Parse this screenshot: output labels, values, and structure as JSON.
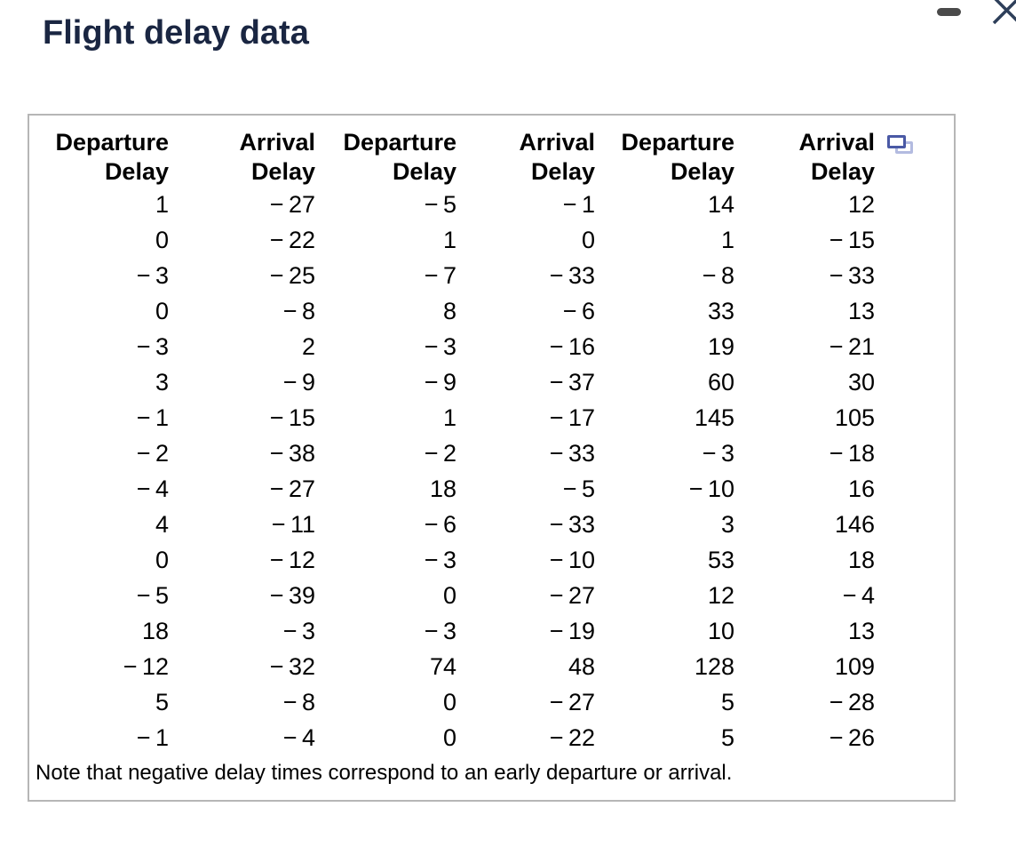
{
  "window": {
    "title": "Flight delay data",
    "controls": {
      "minimize": "minimize",
      "close": "close"
    }
  },
  "panel": {
    "table": {
      "headers": [
        {
          "line1": "Departure",
          "line2": "Delay"
        },
        {
          "line1": "Arrival",
          "line2": "Delay"
        },
        {
          "line1": "Departure",
          "line2": "Delay"
        },
        {
          "line1": "Arrival",
          "line2": "Delay"
        },
        {
          "line1": "Departure",
          "line2": "Delay"
        },
        {
          "line1": "Arrival",
          "line2": "Delay"
        }
      ],
      "rows": [
        [
          1,
          -27,
          -5,
          -1,
          14,
          12
        ],
        [
          0,
          -22,
          1,
          0,
          1,
          -15
        ],
        [
          -3,
          -25,
          -7,
          -33,
          -8,
          -33
        ],
        [
          0,
          -8,
          8,
          -6,
          33,
          13
        ],
        [
          -3,
          2,
          -3,
          -16,
          19,
          -21
        ],
        [
          3,
          -9,
          -9,
          -37,
          60,
          30
        ],
        [
          -1,
          -15,
          1,
          -17,
          145,
          105
        ],
        [
          -2,
          -38,
          -2,
          -33,
          -3,
          -18
        ],
        [
          -4,
          -27,
          18,
          -5,
          -10,
          16
        ],
        [
          4,
          -11,
          -6,
          -33,
          3,
          146
        ],
        [
          0,
          -12,
          -3,
          -10,
          53,
          18
        ],
        [
          -5,
          -39,
          0,
          -27,
          12,
          -4
        ],
        [
          18,
          -3,
          -3,
          -19,
          10,
          13
        ],
        [
          -12,
          -32,
          74,
          48,
          128,
          109
        ],
        [
          5,
          -8,
          0,
          -27,
          5,
          -28
        ],
        [
          -1,
          -4,
          0,
          -22,
          5,
          -26
        ]
      ]
    },
    "note": "Note that negative delay times correspond to an early departure or arrival.",
    "popout_icon": "duplicate-window-icon"
  },
  "colors": {
    "title_navy": "#1a2642",
    "close_navy": "#2e3f5a",
    "minimize_gray": "#4a4a4a",
    "panel_border": "#b6b6b6",
    "icon_blue_front": "#4a59a5",
    "icon_blue_back": "#b3bbe0"
  }
}
